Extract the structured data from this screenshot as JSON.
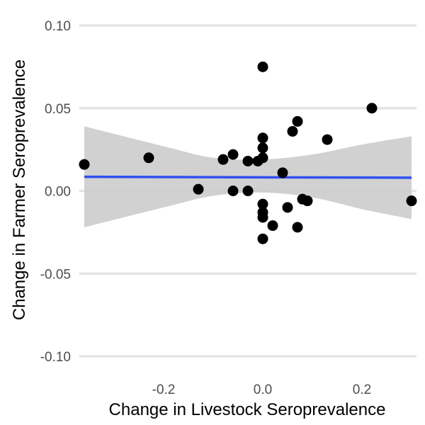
{
  "chart_data": {
    "type": "scatter",
    "title": "",
    "xlabel": "Change in Livestock Seroprevalence",
    "ylabel": "Change in Farmer Seroprevalence",
    "xlim": [
      -0.37,
      0.31
    ],
    "ylim": [
      -0.1,
      0.1
    ],
    "x_ticks": [
      -0.2,
      0.0,
      0.2
    ],
    "x_tick_labels": [
      "-0.2",
      "0.0",
      "0.2"
    ],
    "y_ticks": [
      0.1,
      0.05,
      0.0,
      -0.05,
      -0.1
    ],
    "y_tick_labels": [
      "0.10",
      "0.05",
      "0.00",
      "-0.05",
      "-0.10"
    ],
    "grid": "horizontal major gridlines only",
    "colors": {
      "points": "#000000",
      "fit_line": "#3050f0",
      "confidence_band": "#cccccc",
      "gridlines": "#e5e5e5"
    },
    "points": [
      {
        "x": -0.36,
        "y": 0.016
      },
      {
        "x": -0.23,
        "y": 0.02
      },
      {
        "x": -0.13,
        "y": 0.001
      },
      {
        "x": -0.08,
        "y": 0.019
      },
      {
        "x": -0.06,
        "y": 0.022
      },
      {
        "x": -0.06,
        "y": 0.0
      },
      {
        "x": -0.03,
        "y": 0.018
      },
      {
        "x": -0.03,
        "y": 0.0
      },
      {
        "x": -0.01,
        "y": 0.018
      },
      {
        "x": 0.0,
        "y": 0.075
      },
      {
        "x": 0.0,
        "y": 0.032
      },
      {
        "x": 0.0,
        "y": 0.026
      },
      {
        "x": 0.0,
        "y": 0.02
      },
      {
        "x": 0.0,
        "y": -0.008
      },
      {
        "x": 0.0,
        "y": -0.013
      },
      {
        "x": 0.0,
        "y": -0.016
      },
      {
        "x": 0.0,
        "y": -0.029
      },
      {
        "x": 0.02,
        "y": -0.021
      },
      {
        "x": 0.04,
        "y": 0.011
      },
      {
        "x": 0.05,
        "y": -0.01
      },
      {
        "x": 0.06,
        "y": 0.036
      },
      {
        "x": 0.07,
        "y": 0.042
      },
      {
        "x": 0.07,
        "y": -0.022
      },
      {
        "x": 0.08,
        "y": -0.005
      },
      {
        "x": 0.09,
        "y": -0.006
      },
      {
        "x": 0.13,
        "y": 0.031
      },
      {
        "x": 0.22,
        "y": 0.05
      },
      {
        "x": 0.3,
        "y": -0.006
      }
    ],
    "fit_line": {
      "x": [
        -0.36,
        0.3
      ],
      "y": [
        0.0085,
        0.008
      ]
    },
    "confidence_band": {
      "x": [
        -0.36,
        -0.2,
        -0.1,
        0.0,
        0.1,
        0.2,
        0.3
      ],
      "upper": [
        0.039,
        0.027,
        0.02,
        0.019,
        0.022,
        0.028,
        0.033
      ],
      "lower": [
        -0.022,
        -0.01,
        -0.003,
        -0.001,
        -0.004,
        -0.011,
        -0.017
      ]
    }
  }
}
